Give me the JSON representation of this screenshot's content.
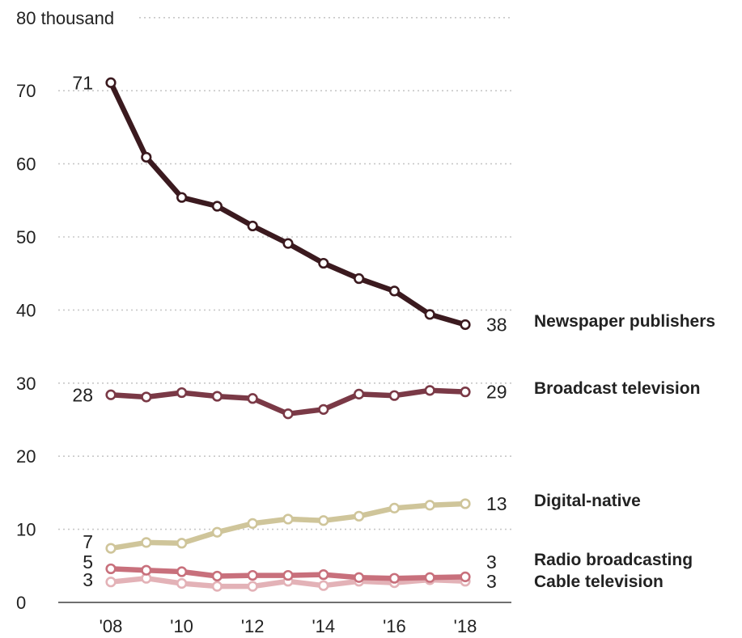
{
  "chart_data": {
    "type": "line",
    "x": [
      2008,
      2009,
      2010,
      2011,
      2012,
      2013,
      2014,
      2015,
      2016,
      2017,
      2018
    ],
    "xticks": [
      2008,
      2010,
      2012,
      2014,
      2016,
      2018
    ],
    "xtick_labels": [
      "'08",
      "'10",
      "'12",
      "'14",
      "'16",
      "'18"
    ],
    "ylim": [
      0,
      80
    ],
    "yticks": [
      0,
      10,
      20,
      30,
      40,
      50,
      60,
      70,
      80
    ],
    "ytick_labels": [
      "0",
      "10",
      "20",
      "30",
      "40",
      "50",
      "60",
      "70",
      "80 thousand"
    ],
    "grid": true,
    "series": [
      {
        "name": "Newspaper publishers",
        "color": "#3b1a1f",
        "values": [
          71.1,
          60.9,
          55.4,
          54.2,
          51.5,
          49.1,
          46.4,
          44.3,
          42.6,
          39.4,
          38.0
        ],
        "start_label": "71",
        "end_label": "38"
      },
      {
        "name": "Broadcast television",
        "color": "#7a3946",
        "values": [
          28.4,
          28.1,
          28.7,
          28.2,
          27.9,
          25.8,
          26.4,
          28.5,
          28.3,
          29.0,
          28.8
        ],
        "start_label": "28",
        "end_label": "29"
      },
      {
        "name": "Digital-native",
        "color": "#cfc59a",
        "values": [
          7.4,
          8.2,
          8.1,
          9.6,
          10.8,
          11.4,
          11.2,
          11.8,
          12.9,
          13.3,
          13.5
        ],
        "start_label": "7",
        "end_label": "13"
      },
      {
        "name": "Radio broadcasting",
        "color": "#c8707c",
        "values": [
          4.6,
          4.4,
          4.2,
          3.6,
          3.7,
          3.7,
          3.8,
          3.4,
          3.3,
          3.4,
          3.5
        ],
        "start_label": "5",
        "end_label": "3"
      },
      {
        "name": "Cable television",
        "color": "#e3b2b7",
        "values": [
          2.8,
          3.3,
          2.6,
          2.2,
          2.2,
          2.9,
          2.3,
          2.9,
          2.7,
          3.1,
          2.9
        ],
        "start_label": "3",
        "end_label": "3"
      }
    ]
  }
}
